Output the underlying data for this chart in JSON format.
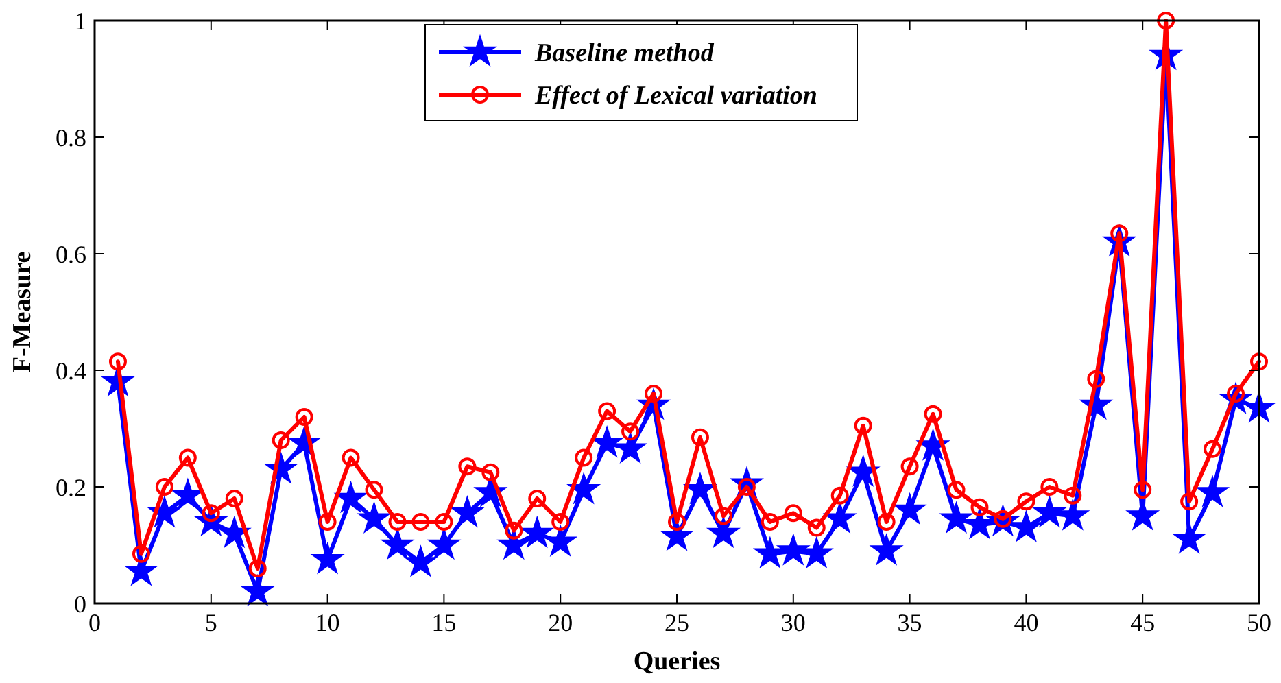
{
  "chart_data": {
    "type": "line",
    "xlabel": "Queries",
    "ylabel": "F-Measure",
    "x": [
      1,
      2,
      3,
      4,
      5,
      6,
      7,
      8,
      9,
      10,
      11,
      12,
      13,
      14,
      15,
      16,
      17,
      18,
      19,
      20,
      21,
      22,
      23,
      24,
      25,
      26,
      27,
      28,
      29,
      30,
      31,
      32,
      33,
      34,
      35,
      36,
      37,
      38,
      39,
      40,
      41,
      42,
      43,
      44,
      45,
      46,
      47,
      48,
      49,
      50
    ],
    "series": [
      {
        "name": "Baseline method",
        "color": "#0000ff",
        "marker": "star",
        "values": [
          0.38,
          0.055,
          0.155,
          0.185,
          0.14,
          0.12,
          0.02,
          0.23,
          0.275,
          0.075,
          0.18,
          0.145,
          0.1,
          0.07,
          0.1,
          0.155,
          0.19,
          0.1,
          0.12,
          0.105,
          0.195,
          0.275,
          0.265,
          0.34,
          0.115,
          0.195,
          0.12,
          0.205,
          0.085,
          0.09,
          0.085,
          0.145,
          0.225,
          0.09,
          0.16,
          0.27,
          0.145,
          0.135,
          0.14,
          0.13,
          0.155,
          0.15,
          0.34,
          0.62,
          0.15,
          0.94,
          0.11,
          0.19,
          0.35,
          0.335
        ]
      },
      {
        "name": "Effect of Lexical variation",
        "color": "#ff0000",
        "marker": "circle",
        "values": [
          0.415,
          0.085,
          0.2,
          0.25,
          0.155,
          0.18,
          0.06,
          0.28,
          0.32,
          0.14,
          0.25,
          0.195,
          0.14,
          0.14,
          0.14,
          0.235,
          0.225,
          0.125,
          0.18,
          0.14,
          0.25,
          0.33,
          0.295,
          0.36,
          0.14,
          0.285,
          0.15,
          0.2,
          0.14,
          0.155,
          0.13,
          0.185,
          0.305,
          0.14,
          0.235,
          0.325,
          0.195,
          0.165,
          0.145,
          0.175,
          0.2,
          0.185,
          0.385,
          0.635,
          0.195,
          1.0,
          0.175,
          0.265,
          0.36,
          0.415
        ]
      }
    ],
    "xlim": [
      0,
      50
    ],
    "xticks": [
      0,
      5,
      10,
      15,
      20,
      25,
      30,
      35,
      40,
      45,
      50
    ],
    "ylim": [
      0,
      1
    ],
    "yticks": [
      0,
      0.2,
      0.4,
      0.6,
      0.8,
      1
    ],
    "legend": "top",
    "grid": false,
    "line_style": "solid"
  }
}
